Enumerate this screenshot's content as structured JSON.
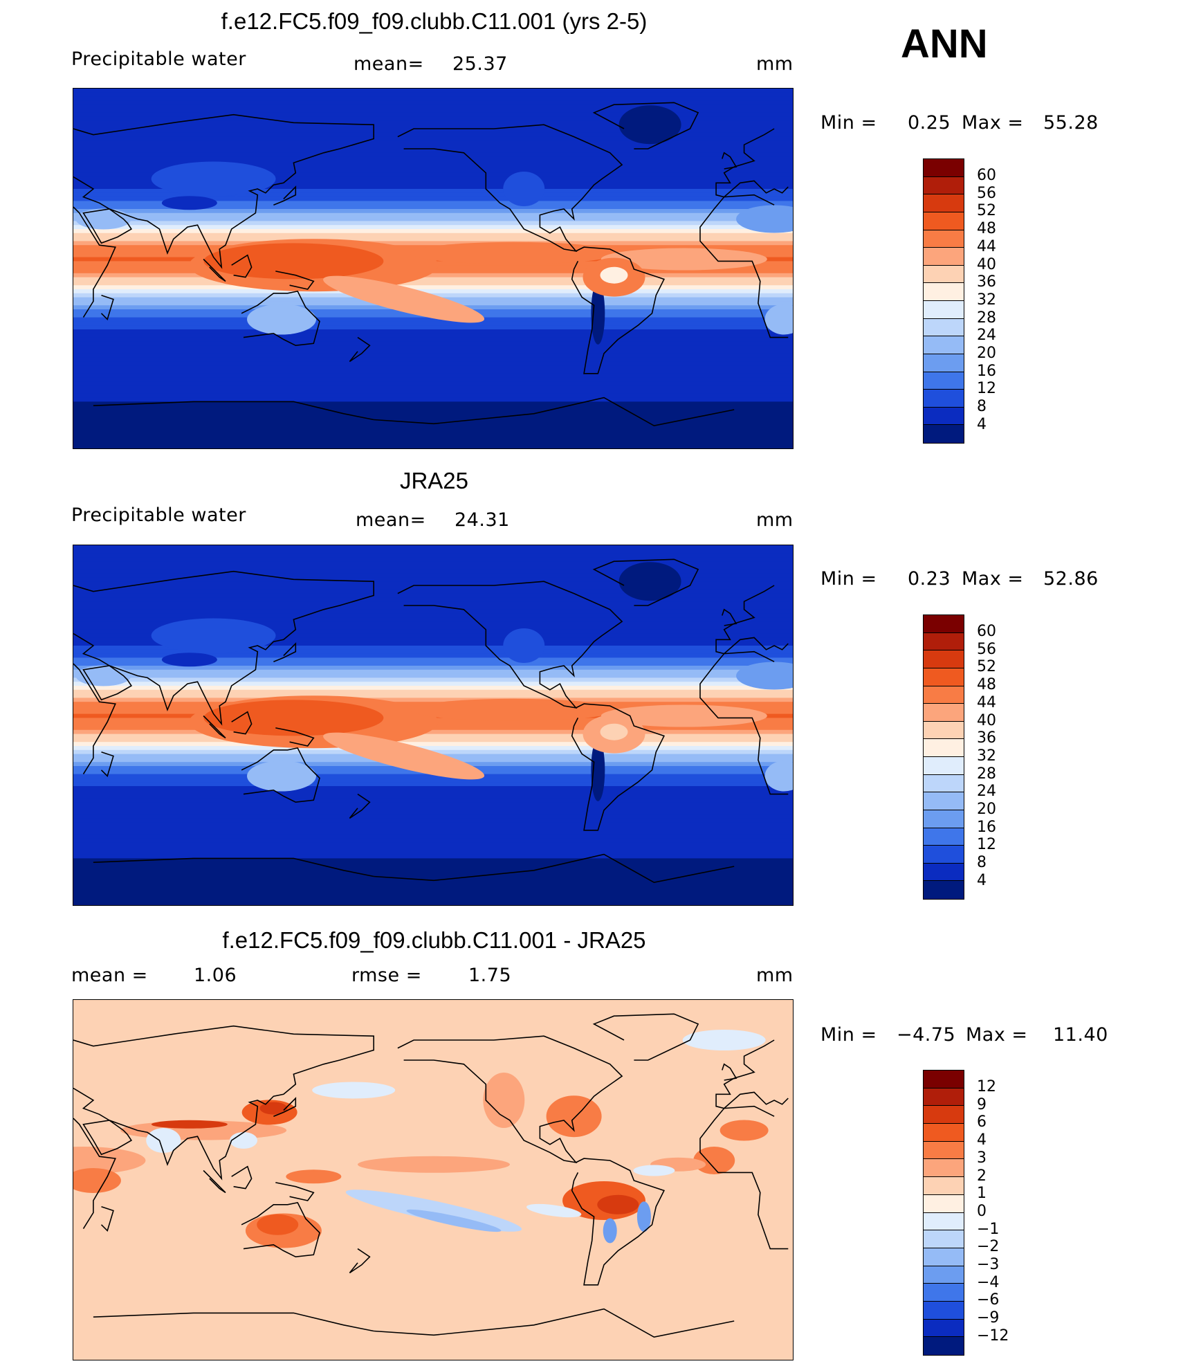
{
  "season": "ANN",
  "panels": [
    {
      "id": "model",
      "title": "f.e12.FC5.f09_f09.clubb.C11.001 (yrs 2-5)",
      "left_label": "Precipitable water",
      "mid_label": "mean=",
      "mid_value": "25.37",
      "units": "mm",
      "minmax": {
        "min_label": "Min =",
        "min": "0.25",
        "max_label": "Max =",
        "max": "55.28"
      },
      "colorbar": {
        "labels": [
          "60",
          "56",
          "52",
          "48",
          "44",
          "40",
          "36",
          "32",
          "28",
          "24",
          "20",
          "16",
          "12",
          "8",
          "4"
        ],
        "colors": [
          "#7a0000",
          "#b01e0a",
          "#d73a0f",
          "#ef5a20",
          "#f87c45",
          "#fca57c",
          "#fdd2b4",
          "#fff0e2",
          "#e0edfc",
          "#bdd6fa",
          "#95bbf6",
          "#6c9df0",
          "#3f76ea",
          "#1f4fdc",
          "#0b2cc0",
          "#001a7e"
        ]
      },
      "map_variant": "model"
    },
    {
      "id": "obs",
      "title": "JRA25",
      "left_label": "Precipitable water",
      "mid_label": "mean=",
      "mid_value": "24.31",
      "units": "mm",
      "minmax": {
        "min_label": "Min =",
        "min": "0.23",
        "max_label": "Max =",
        "max": "52.86"
      },
      "colorbar": {
        "labels": [
          "60",
          "56",
          "52",
          "48",
          "44",
          "40",
          "36",
          "32",
          "28",
          "24",
          "20",
          "16",
          "12",
          "8",
          "4"
        ],
        "colors": [
          "#7a0000",
          "#b01e0a",
          "#d73a0f",
          "#ef5a20",
          "#f87c45",
          "#fca57c",
          "#fdd2b4",
          "#fff0e2",
          "#e0edfc",
          "#bdd6fa",
          "#95bbf6",
          "#6c9df0",
          "#3f76ea",
          "#1f4fdc",
          "#0b2cc0",
          "#001a7e"
        ]
      },
      "map_variant": "obs"
    },
    {
      "id": "diff",
      "title": "f.e12.FC5.f09_f09.clubb.C11.001 - JRA25",
      "left_label": "mean =",
      "left_value": "1.06",
      "mid_label": "rmse =",
      "mid_value": "1.75",
      "units": "mm",
      "minmax": {
        "min_label": "Min =",
        "min": "−4.75",
        "max_label": "Max =",
        "max": "11.40"
      },
      "colorbar": {
        "labels": [
          "12",
          "9",
          "6",
          "4",
          "3",
          "2",
          "1",
          "0",
          "−1",
          "−2",
          "−3",
          "−4",
          "−6",
          "−9",
          "−12"
        ],
        "colors": [
          "#7a0000",
          "#b01e0a",
          "#d73a0f",
          "#ef5a20",
          "#f87c45",
          "#fca57c",
          "#fdd2b4",
          "#fff0e2",
          "#e0edfc",
          "#bdd6fa",
          "#95bbf6",
          "#6c9df0",
          "#3f76ea",
          "#1f4fdc",
          "#0b2cc0",
          "#001a7e"
        ]
      },
      "map_variant": "diff"
    }
  ]
}
